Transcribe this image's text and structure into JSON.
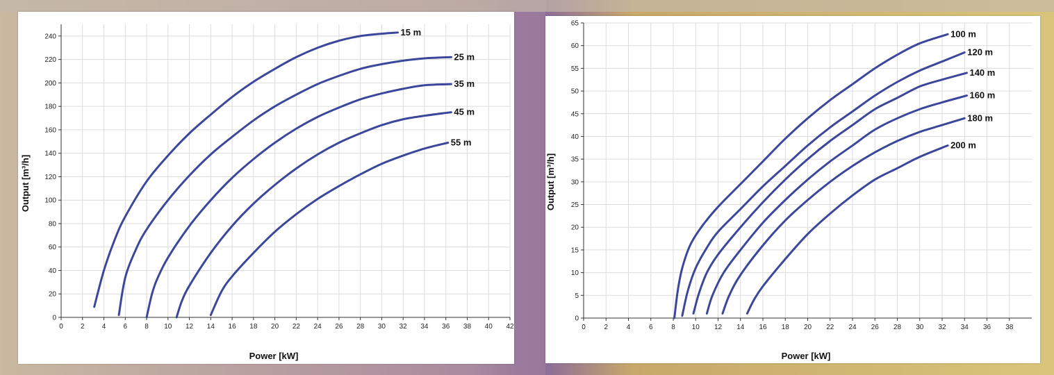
{
  "colors": {
    "curve": "#3b479b",
    "grid": "#dcdcdc",
    "axis": "#333333",
    "tick_text": "#222222"
  },
  "chart_data": [
    {
      "type": "line",
      "xlabel": "Power [kW]",
      "ylabel": "Output [m³/h]",
      "xlim": [
        0,
        42
      ],
      "ylim": [
        0,
        250
      ],
      "x_ticks": [
        0,
        2,
        4,
        6,
        8,
        10,
        12,
        14,
        16,
        18,
        20,
        22,
        24,
        26,
        28,
        30,
        32,
        34,
        36,
        38,
        40,
        42
      ],
      "y_ticks": [
        0,
        20,
        40,
        60,
        80,
        100,
        120,
        140,
        160,
        180,
        200,
        220,
        240
      ],
      "grid": true,
      "series": [
        {
          "name": "15 m",
          "x": [
            3.1,
            4,
            5,
            6,
            8,
            10,
            12,
            14,
            16,
            18,
            20,
            22,
            24,
            26,
            28,
            30,
            31.5
          ],
          "y": [
            9,
            40,
            66,
            86,
            116,
            138,
            157,
            173,
            188,
            201,
            212,
            222,
            230,
            236,
            240,
            242,
            243
          ]
        },
        {
          "name": "25 m",
          "x": [
            5.4,
            6,
            7,
            8,
            10,
            12,
            14,
            16,
            18,
            20,
            22,
            24,
            26,
            28,
            30,
            32,
            34,
            36.5
          ],
          "y": [
            2,
            34,
            58,
            75,
            100,
            121,
            139,
            154,
            168,
            180,
            190,
            199,
            206,
            212,
            216,
            219,
            221,
            222
          ]
        },
        {
          "name": "35 m",
          "x": [
            8,
            8.5,
            9,
            10,
            12,
            14,
            16,
            18,
            20,
            22,
            24,
            26,
            28,
            30,
            32,
            34,
            36.5
          ],
          "y": [
            0,
            20,
            33,
            51,
            78,
            100,
            119,
            135,
            149,
            161,
            171,
            179,
            186,
            191,
            195,
            198,
            199
          ]
        },
        {
          "name": "45 m",
          "x": [
            10.8,
            11.3,
            12,
            14,
            16,
            18,
            20,
            22,
            24,
            26,
            28,
            30,
            32,
            34,
            36.5
          ],
          "y": [
            0,
            14,
            27,
            55,
            78,
            97,
            113,
            127,
            139,
            149,
            157,
            164,
            169,
            172,
            175
          ]
        },
        {
          "name": "55 m",
          "x": [
            14,
            15,
            16,
            18,
            20,
            22,
            24,
            26,
            28,
            30,
            32,
            34,
            36.2
          ],
          "y": [
            2,
            22,
            35,
            55,
            73,
            88,
            101,
            112,
            122,
            131,
            138,
            144,
            149
          ]
        }
      ]
    },
    {
      "type": "line",
      "xlabel": "Power [kW]",
      "ylabel": "Output [m³/h]",
      "xlim": [
        0,
        40
      ],
      "ylim": [
        0,
        65
      ],
      "x_ticks": [
        0,
        2,
        4,
        6,
        8,
        10,
        12,
        14,
        16,
        18,
        20,
        22,
        24,
        26,
        28,
        30,
        32,
        34,
        36,
        38
      ],
      "y_ticks": [
        0,
        5,
        10,
        15,
        20,
        25,
        30,
        35,
        40,
        45,
        50,
        55,
        60,
        65
      ],
      "grid": true,
      "series": [
        {
          "name": "100 m",
          "x": [
            8.1,
            8.4,
            8.8,
            9.5,
            10.5,
            12,
            14,
            16,
            18,
            20,
            22,
            24,
            26,
            28,
            30,
            32.5
          ],
          "y": [
            0,
            6,
            11,
            16,
            20,
            24.5,
            29.5,
            34.5,
            39.5,
            44,
            48,
            51.5,
            55,
            58,
            60.5,
            62.5
          ]
        },
        {
          "name": "120 m",
          "x": [
            8.8,
            9.3,
            10,
            11,
            12,
            14,
            16,
            18,
            20,
            22,
            24,
            26,
            28,
            30,
            32,
            34
          ],
          "y": [
            0.5,
            6,
            11,
            15.5,
            19,
            24,
            29,
            33.5,
            38,
            42,
            45.5,
            49,
            52,
            54.5,
            56.5,
            58.5
          ]
        },
        {
          "name": "140 m",
          "x": [
            9.8,
            10.3,
            11,
            12,
            14,
            16,
            18,
            20,
            22,
            24,
            26,
            28,
            30,
            32,
            34.2
          ],
          "y": [
            1,
            5.5,
            10,
            14,
            20,
            25.5,
            30.5,
            35,
            39,
            42.5,
            46,
            48.5,
            51,
            52.5,
            54
          ]
        },
        {
          "name": "160 m",
          "x": [
            11,
            11.5,
            12.5,
            14,
            16,
            18,
            20,
            22,
            24,
            26,
            28,
            30,
            32,
            34.2
          ],
          "y": [
            1,
            5,
            10,
            15,
            21,
            26,
            30.5,
            34.5,
            38,
            41.5,
            44,
            46,
            47.5,
            49
          ]
        },
        {
          "name": "180 m",
          "x": [
            12.4,
            13,
            14,
            16,
            18,
            20,
            22,
            24,
            26,
            28,
            30,
            32,
            34
          ],
          "y": [
            1,
            5,
            9.5,
            16,
            21.5,
            26,
            30,
            33.5,
            36.5,
            39,
            41,
            42.5,
            44
          ]
        },
        {
          "name": "200 m",
          "x": [
            14.6,
            15.2,
            16,
            18,
            20,
            22,
            24,
            26,
            28,
            30,
            32.5
          ],
          "y": [
            1,
            4,
            7,
            13,
            18.5,
            23,
            27,
            30.5,
            33,
            35.5,
            38
          ]
        }
      ]
    }
  ]
}
